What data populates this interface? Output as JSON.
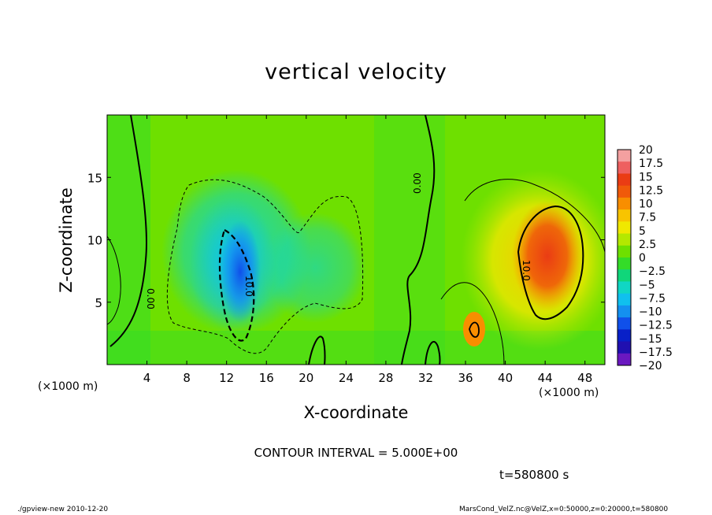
{
  "chart_data": {
    "type": "heatmap",
    "title": "vertical velocity",
    "xlabel": "X-coordinate",
    "ylabel": "Z-coordinate",
    "x_unit": "(×1000 m)",
    "xlim": [
      0,
      50
    ],
    "ylim": [
      0,
      20
    ],
    "x_ticks": [
      "4",
      "8",
      "12",
      "16",
      "20",
      "24",
      "28",
      "32",
      "36",
      "40",
      "44",
      "48"
    ],
    "y_ticks": [
      "5",
      "10",
      "15"
    ],
    "colorbar": {
      "labels": [
        "20",
        "17.5",
        "15",
        "12.5",
        "10",
        "7.5",
        "5",
        "2.5",
        "0",
        "−2.5",
        "−5",
        "−7.5",
        "−10",
        "−12.5",
        "−15",
        "−17.5",
        "−20"
      ],
      "colors": [
        "#f4a0a0",
        "#ee6060",
        "#ea3c14",
        "#f05a0a",
        "#f88e00",
        "#f8c400",
        "#f0e800",
        "#b4e800",
        "#6ee000",
        "#34dc28",
        "#10d67a",
        "#10d6c4",
        "#10c0ee",
        "#1490f0",
        "#1050ea",
        "#0820c8",
        "#2010b0",
        "#6a18c0"
      ]
    },
    "features": [
      {
        "name": "downdraft",
        "x": 13,
        "z": 8,
        "value": -13
      },
      {
        "name": "updraft",
        "x": 44,
        "z": 9,
        "value": 12
      }
    ],
    "contour_labels": [
      "0.00",
      "10.0",
      "0.00",
      "10.0"
    ],
    "contour_interval_text": "CONTOUR INTERVAL = 5.000E+00",
    "time_text": "t=580800 s"
  },
  "footer": {
    "left": "./gpview-new  2010-12-20",
    "right": "MarsCond_VelZ.nc@VelZ,x=0:50000,z=0:20000,t=580800"
  }
}
